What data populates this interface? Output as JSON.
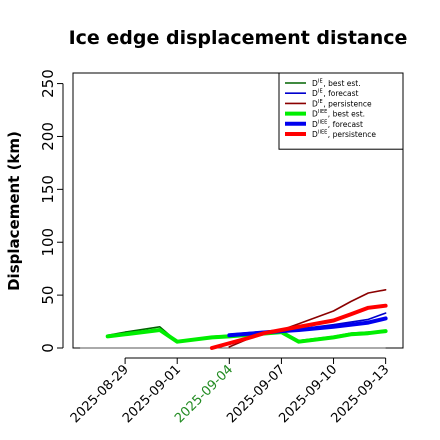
{
  "chart_data": {
    "type": "line",
    "title": "Ice edge displacement distance",
    "xlabel": "",
    "ylabel": "Displacement (km)",
    "ylim": [
      0,
      260
    ],
    "yticks": [
      0,
      50,
      100,
      150,
      200,
      250
    ],
    "x_ticks": [
      {
        "date": "2025-08-29",
        "label": "2025-08-29",
        "color": "#000000"
      },
      {
        "date": "2025-09-01",
        "label": "2025-09-01",
        "color": "#000000"
      },
      {
        "date": "2025-09-04",
        "label": "2025-09-04",
        "color": "#228B22"
      },
      {
        "date": "2025-09-07",
        "label": "2025-09-07",
        "color": "#000000"
      },
      {
        "date": "2025-09-10",
        "label": "2025-09-10",
        "color": "#000000"
      },
      {
        "date": "2025-09-13",
        "label": "2025-09-13",
        "color": "#000000"
      }
    ],
    "xlim": [
      "2025-08-26",
      "2025-09-14"
    ],
    "legend_position": "top-right",
    "reference_line": {
      "y": 0,
      "color": "#555555"
    },
    "series": [
      {
        "name": "D^IE, best est.",
        "base": "D",
        "sup": "IE",
        "suffix": ", best est.",
        "color": "#006400",
        "width": 1.6,
        "x": [
          "2025-08-28",
          "2025-08-29",
          "2025-08-31",
          "2025-09-01",
          "2025-09-03",
          "2025-09-04",
          "2025-09-07",
          "2025-09-08",
          "2025-09-10",
          "2025-09-11",
          "2025-09-12",
          "2025-09-13"
        ],
        "y": [
          12,
          15,
          20,
          6,
          11,
          12,
          16,
          7,
          11,
          14,
          15,
          16
        ]
      },
      {
        "name": "D^IE, forecast",
        "base": "D",
        "sup": "IE",
        "suffix": ", forecast",
        "color": "#0000CD",
        "width": 1.6,
        "x": [
          "2025-09-04",
          "2025-09-07",
          "2025-09-08",
          "2025-09-10",
          "2025-09-12",
          "2025-09-13"
        ],
        "y": [
          13,
          17,
          18,
          22,
          27,
          33
        ]
      },
      {
        "name": "D^IE, persistence",
        "base": "D",
        "sup": "IE",
        "suffix": ", persistence",
        "color": "#8B0000",
        "width": 1.6,
        "x": [
          "2025-09-04",
          "2025-09-05",
          "2025-09-06",
          "2025-09-07",
          "2025-09-08",
          "2025-09-10",
          "2025-09-11",
          "2025-09-12",
          "2025-09-13"
        ],
        "y": [
          1,
          8,
          14,
          17,
          23,
          35,
          44,
          52,
          55
        ]
      },
      {
        "name": "D^IIEE, best est.",
        "base": "D",
        "sup": "IIEE",
        "suffix": ", best est.",
        "color": "#00EE00",
        "width": 4,
        "x": [
          "2025-08-28",
          "2025-08-29",
          "2025-08-31",
          "2025-09-01",
          "2025-09-03",
          "2025-09-04",
          "2025-09-07",
          "2025-09-08",
          "2025-09-10",
          "2025-09-11",
          "2025-09-12",
          "2025-09-13"
        ],
        "y": [
          11,
          13,
          17,
          6,
          10,
          11,
          15,
          6,
          10,
          13,
          14,
          16
        ]
      },
      {
        "name": "D^IIEE, forecast",
        "base": "D",
        "sup": "IIEE",
        "suffix": ", forecast",
        "color": "#0000EE",
        "width": 4,
        "x": [
          "2025-09-04",
          "2025-09-07",
          "2025-09-08",
          "2025-09-10",
          "2025-09-12",
          "2025-09-13"
        ],
        "y": [
          12,
          16,
          17,
          20,
          24,
          28
        ]
      },
      {
        "name": "D^IIEE, persistence",
        "base": "D",
        "sup": "IIEE",
        "suffix": ", persistence",
        "color": "#FF0000",
        "width": 4,
        "x": [
          "2025-09-03",
          "2025-09-05",
          "2025-09-06",
          "2025-09-07",
          "2025-09-08",
          "2025-09-10",
          "2025-09-11",
          "2025-09-12",
          "2025-09-13"
        ],
        "y": [
          0,
          9,
          14,
          17,
          20,
          26,
          32,
          38,
          40
        ]
      }
    ]
  }
}
